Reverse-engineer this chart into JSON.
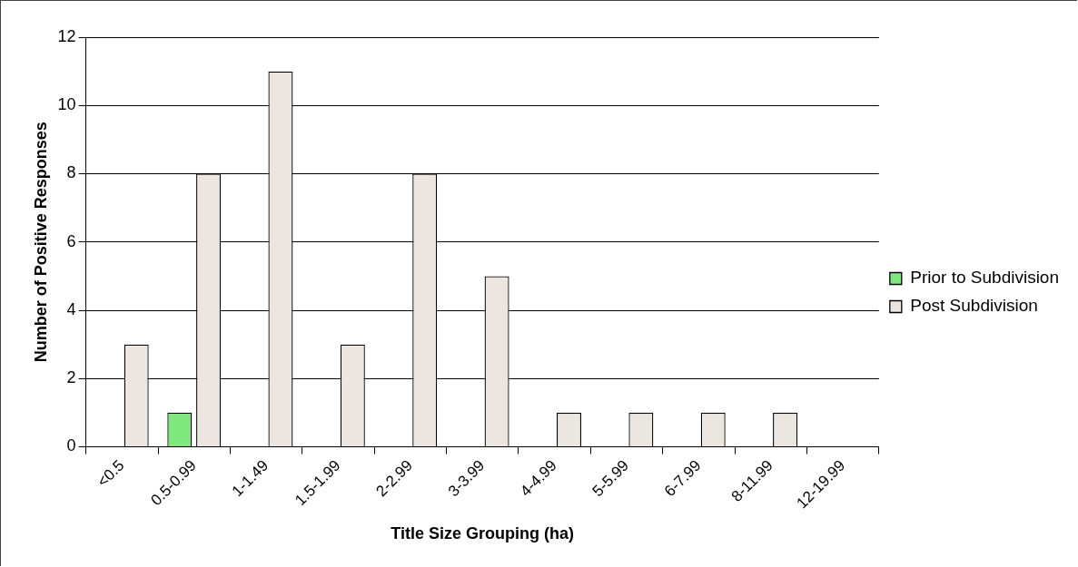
{
  "chart_data": {
    "type": "bar",
    "xlabel": "Title Size Grouping (ha)",
    "ylabel": "Number of Positive Responses",
    "categories": [
      "<0.5",
      "0.5-0.99",
      "1-1.49",
      "1.5-1.99",
      "2-2.99",
      "3-3.99",
      "4-4.99",
      "5-5.99",
      "6-7.99",
      "8-11.99",
      "12-19.99"
    ],
    "series": [
      {
        "name": "Prior to Subdivision",
        "color": "#7ee87e",
        "values": [
          0,
          1,
          0,
          0,
          0,
          0,
          0,
          0,
          0,
          0,
          0
        ]
      },
      {
        "name": "Post Subdivision",
        "color": "#ebe6e0",
        "values": [
          3,
          8,
          11,
          3,
          8,
          5,
          1,
          1,
          1,
          1,
          0
        ]
      }
    ],
    "ylim": [
      0,
      12
    ],
    "yticks": [
      0,
      2,
      4,
      6,
      8,
      10,
      12
    ],
    "grid": "y",
    "legend": "right"
  }
}
